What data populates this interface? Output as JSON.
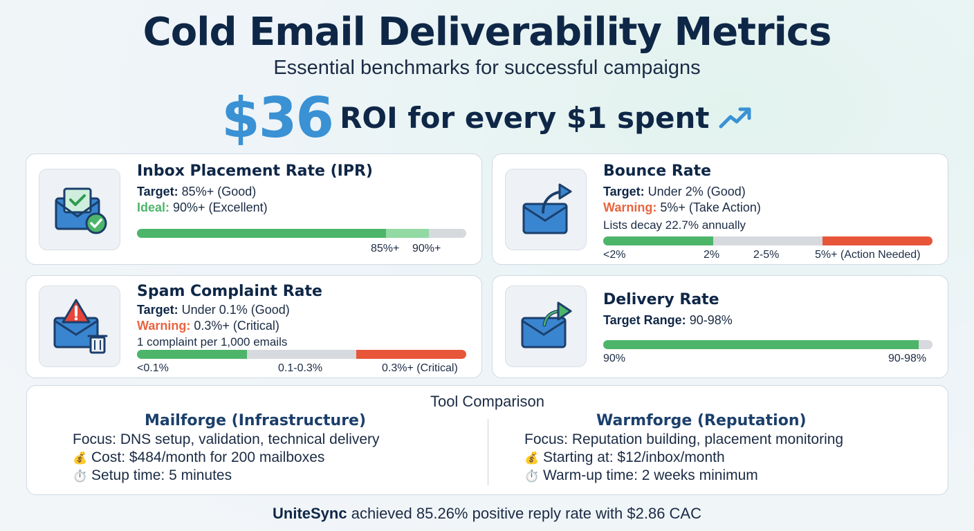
{
  "header": {
    "title": "Cold Email Deliverability Metrics",
    "subtitle": "Essential benchmarks for successful campaigns",
    "roi_value": "$36",
    "roi_text": "ROI for every $1 spent"
  },
  "cards": {
    "ipr": {
      "title": "Inbox Placement Rate (IPR)",
      "target_label": "Target:",
      "target_value": " 85%+ (Good)",
      "ideal_label": "Ideal:",
      "ideal_value": " 90%+ (Excellent)",
      "bar": [
        {
          "fraction": 0.756,
          "color": "#4db56a"
        },
        {
          "fraction": 0.13,
          "color": "#93d9a3"
        },
        {
          "fraction": 0.114,
          "color": "#d6d9dd"
        }
      ],
      "ticks": [
        "85%+",
        "90%+"
      ]
    },
    "bounce": {
      "title": "Bounce Rate",
      "target_label": "Target:",
      "target_value": " Under 2% (Good)",
      "warning_label": "Warning:",
      "warning_value": " 5%+ (Take Action)",
      "note": "Lists decay 22.7% annually",
      "bar": [
        {
          "fraction": 0.334,
          "color": "#4db56a"
        },
        {
          "fraction": 0.333,
          "color": "#d6d9dd"
        },
        {
          "fraction": 0.333,
          "color": "#e8563a"
        }
      ],
      "ticks": [
        "<2%",
        "2%",
        "2-5%",
        "5%+ (Action Needed)"
      ]
    },
    "spam": {
      "title": "Spam Complaint Rate",
      "target_label": "Target:",
      "target_value": " Under 0.1% (Good)",
      "warning_label": "Warning:",
      "warning_value": " 0.3%+ (Critical)",
      "note": "1 complaint per 1,000 emails",
      "bar": [
        {
          "fraction": 0.334,
          "color": "#4db56a"
        },
        {
          "fraction": 0.333,
          "color": "#d6d9dd"
        },
        {
          "fraction": 0.333,
          "color": "#e8563a"
        }
      ],
      "ticks": [
        "<0.1%",
        "0.1-0.3%",
        "0.3%+ (Critical)"
      ]
    },
    "delivery": {
      "title": "Delivery Rate",
      "target_label": "Target Range:",
      "target_value": " 90-98%",
      "bar": [
        {
          "fraction": 0.958,
          "color": "#4db56a"
        },
        {
          "fraction": 0.042,
          "color": "#d6d9dd"
        }
      ],
      "ticks": [
        "90%",
        "90-98%"
      ]
    }
  },
  "tools": {
    "title": "Tool Comparison",
    "left": {
      "name": "Mailforge (Infrastructure)",
      "focus": "Focus: DNS setup, validation, technical delivery",
      "cost_icon": "💰",
      "cost": "Cost: $484/month for 200 mailboxes",
      "time_icon": "⏱️",
      "time": "Setup time: 5 minutes"
    },
    "right": {
      "name": "Warmforge (Reputation)",
      "focus": "Focus: Reputation building, placement monitoring",
      "cost_icon": "💰",
      "cost": "Starting at: $12/inbox/month",
      "time_icon": "⏱️",
      "time": "Warm-up time: 2 weeks minimum"
    }
  },
  "footer": {
    "brand": "UniteSync",
    "text": " achieved 85.26% positive reply rate with $2.86 CAC"
  }
}
